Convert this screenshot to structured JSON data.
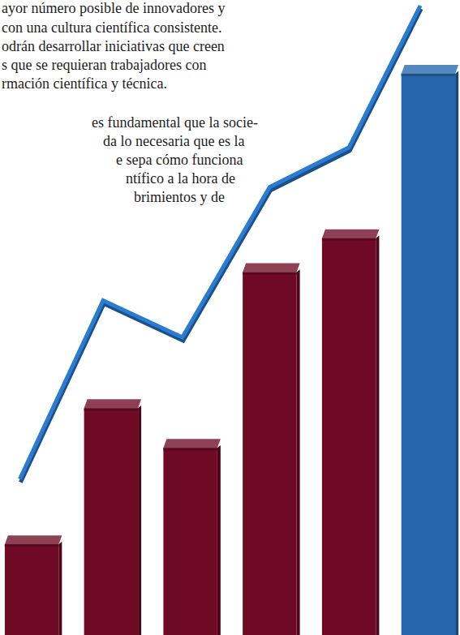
{
  "chart_data": {
    "type": "bar",
    "annotations": [
      "ayor número posible de innovadores y",
      "con una cultura científica consistente.",
      "odrán desarrollar iniciativas que creen",
      "s que se requieran trabajadores con",
      "rmación científica y técnica.",
      "es fundamental que la socie-",
      "da lo necesaria que es la",
      "e sepa cómo funciona",
      "ntífico a la hora de",
      "brimientos y de"
    ],
    "categories": [
      null,
      null,
      null,
      null,
      null,
      null
    ],
    "xlim": [
      -0.4,
      5.4
    ],
    "ylim": [
      0,
      112
    ],
    "tick_labels": false,
    "grid": false,
    "series": [
      {
        "type": "bar",
        "colors": [
          "#6e0a24",
          "#6e0a24",
          "#6e0a24",
          "#6e0a24",
          "#6e0a24",
          "#2566ab"
        ],
        "values": [
          16,
          40,
          33,
          64,
          70,
          99
        ]
      },
      {
        "type": "line",
        "color": "#2a7bd2",
        "x": [
          -0.15,
          0.9,
          1.9,
          3,
          4,
          4.9
        ],
        "values": [
          27.5,
          59,
          52.5,
          79,
          86,
          111
        ]
      }
    ]
  }
}
